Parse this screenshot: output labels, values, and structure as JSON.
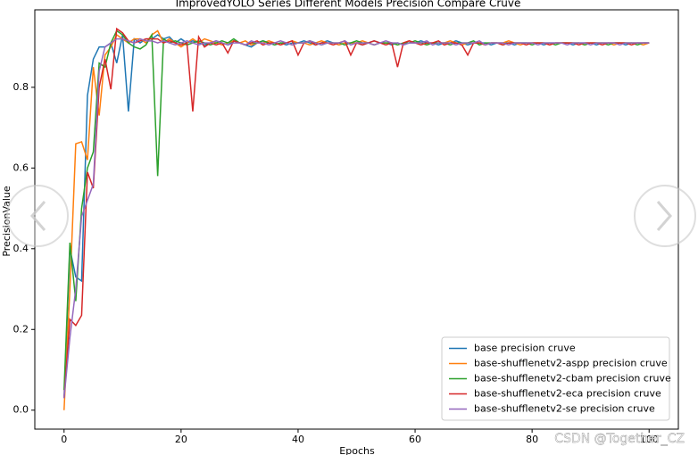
{
  "chart_data": {
    "type": "line",
    "title": "ImprovedYOLO Series Different Models Precision Compare Cruve",
    "xlabel": "Epochs",
    "ylabel": "PrecisionValue",
    "watermark": "CSDN @Together_CZ",
    "legend": "lower right",
    "xlim": [
      -5,
      105
    ],
    "ylim": [
      -0.047,
      0.992
    ],
    "xticks": [
      0,
      20,
      40,
      60,
      80,
      100
    ],
    "yticks": [
      {
        "value": 0,
        "label": "0.0"
      },
      0.2,
      0.4,
      0.6,
      0.8
    ],
    "x": [
      0,
      1,
      2,
      3,
      4,
      5,
      6,
      7,
      8,
      9,
      10,
      11,
      12,
      13,
      14,
      15,
      16,
      17,
      18,
      19,
      20,
      21,
      22,
      23,
      24,
      25,
      26,
      27,
      28,
      29,
      30,
      31,
      32,
      33,
      34,
      35,
      36,
      37,
      38,
      39,
      40,
      41,
      42,
      43,
      44,
      45,
      46,
      47,
      48,
      49,
      50,
      51,
      52,
      53,
      54,
      55,
      56,
      57,
      58,
      59,
      60,
      61,
      62,
      63,
      64,
      65,
      66,
      67,
      68,
      69,
      70,
      71,
      72,
      73,
      74,
      75,
      76,
      77,
      78,
      79,
      80,
      81,
      82,
      83,
      84,
      85,
      86,
      87,
      88,
      89,
      90,
      91,
      92,
      93,
      94,
      95,
      96,
      97,
      98,
      99,
      100
    ],
    "series": [
      {
        "name": "base precision cruve",
        "color": "#1f77b4",
        "values": [
          0.03,
          0.4,
          0.33,
          0.32,
          0.78,
          0.87,
          0.9,
          0.9,
          0.91,
          0.86,
          0.93,
          0.74,
          0.92,
          0.91,
          0.92,
          0.92,
          0.93,
          0.92,
          0.925,
          0.91,
          0.92,
          0.91,
          0.915,
          0.91,
          0.905,
          0.91,
          0.915,
          0.91,
          0.905,
          0.915,
          0.91,
          0.905,
          0.9,
          0.91,
          0.915,
          0.91,
          0.905,
          0.91,
          0.905,
          0.91,
          0.91,
          0.915,
          0.91,
          0.905,
          0.91,
          0.915,
          0.91,
          0.905,
          0.91,
          0.91,
          0.91,
          0.905,
          0.91,
          0.915,
          0.91,
          0.91,
          0.905,
          0.91,
          0.905,
          0.91,
          0.91,
          0.915,
          0.91,
          0.91,
          0.905,
          0.91,
          0.91,
          0.915,
          0.91,
          0.905,
          0.91,
          0.91,
          0.91,
          0.905,
          0.91,
          0.91,
          0.91,
          0.905,
          0.91,
          0.91,
          0.91,
          0.91,
          0.905,
          0.91,
          0.91,
          0.91,
          0.91,
          0.905,
          0.91,
          0.91,
          0.91,
          0.905,
          0.91,
          0.91,
          0.91,
          0.91,
          0.905,
          0.91,
          0.91,
          0.91,
          0.91
        ]
      },
      {
        "name": "base-shufflenetv2-aspp precision cruve",
        "color": "#ff7f0e",
        "values": [
          0.0,
          0.3,
          0.66,
          0.665,
          0.62,
          0.85,
          0.73,
          0.88,
          0.9,
          0.93,
          0.92,
          0.91,
          0.92,
          0.92,
          0.91,
          0.93,
          0.94,
          0.91,
          0.92,
          0.91,
          0.9,
          0.91,
          0.92,
          0.91,
          0.92,
          0.915,
          0.91,
          0.905,
          0.91,
          0.915,
          0.91,
          0.915,
          0.905,
          0.91,
          0.91,
          0.915,
          0.91,
          0.905,
          0.91,
          0.915,
          0.91,
          0.91,
          0.905,
          0.91,
          0.915,
          0.91,
          0.91,
          0.905,
          0.91,
          0.91,
          0.91,
          0.915,
          0.91,
          0.905,
          0.91,
          0.91,
          0.91,
          0.905,
          0.91,
          0.915,
          0.91,
          0.91,
          0.905,
          0.91,
          0.91,
          0.91,
          0.915,
          0.91,
          0.905,
          0.91,
          0.91,
          0.91,
          0.905,
          0.91,
          0.91,
          0.91,
          0.915,
          0.91,
          0.905,
          0.91,
          0.91,
          0.91,
          0.91,
          0.905,
          0.91,
          0.91,
          0.91,
          0.91,
          0.91,
          0.905,
          0.91,
          0.91,
          0.91,
          0.91,
          0.905,
          0.91,
          0.91,
          0.91,
          0.91,
          0.905,
          0.91
        ]
      },
      {
        "name": "base-shufflenetv2-cbam precision cruve",
        "color": "#2ca02c",
        "values": [
          0.05,
          0.415,
          0.27,
          0.5,
          0.6,
          0.64,
          0.86,
          0.85,
          0.91,
          0.94,
          0.93,
          0.91,
          0.9,
          0.895,
          0.905,
          0.93,
          0.58,
          0.92,
          0.91,
          0.915,
          0.91,
          0.905,
          0.91,
          0.915,
          0.91,
          0.905,
          0.91,
          0.915,
          0.91,
          0.92,
          0.91,
          0.905,
          0.91,
          0.91,
          0.915,
          0.91,
          0.905,
          0.91,
          0.91,
          0.905,
          0.91,
          0.91,
          0.915,
          0.91,
          0.905,
          0.91,
          0.91,
          0.91,
          0.905,
          0.91,
          0.915,
          0.91,
          0.91,
          0.905,
          0.91,
          0.91,
          0.91,
          0.905,
          0.91,
          0.91,
          0.915,
          0.91,
          0.905,
          0.91,
          0.91,
          0.91,
          0.905,
          0.91,
          0.91,
          0.91,
          0.915,
          0.905,
          0.91,
          0.91,
          0.91,
          0.905,
          0.91,
          0.91,
          0.91,
          0.91,
          0.905,
          0.91,
          0.91,
          0.91,
          0.905,
          0.91,
          0.91,
          0.91,
          0.91,
          0.905,
          0.91,
          0.91,
          0.91,
          0.905,
          0.91,
          0.91,
          0.91,
          0.91,
          0.905,
          0.91,
          0.91
        ]
      },
      {
        "name": "base-shufflenetv2-eca precision cruve",
        "color": "#d62728",
        "values": [
          0.03,
          0.225,
          0.21,
          0.235,
          0.59,
          0.55,
          0.8,
          0.87,
          0.795,
          0.945,
          0.935,
          0.915,
          0.91,
          0.915,
          0.92,
          0.92,
          0.92,
          0.91,
          0.915,
          0.91,
          0.905,
          0.91,
          0.74,
          0.925,
          0.9,
          0.91,
          0.905,
          0.91,
          0.885,
          0.915,
          0.91,
          0.905,
          0.91,
          0.915,
          0.905,
          0.91,
          0.91,
          0.905,
          0.91,
          0.915,
          0.88,
          0.91,
          0.915,
          0.905,
          0.91,
          0.91,
          0.905,
          0.91,
          0.915,
          0.88,
          0.91,
          0.905,
          0.91,
          0.915,
          0.91,
          0.905,
          0.91,
          0.85,
          0.91,
          0.915,
          0.91,
          0.905,
          0.91,
          0.91,
          0.915,
          0.905,
          0.91,
          0.91,
          0.905,
          0.88,
          0.91,
          0.91,
          0.905,
          0.91,
          0.91,
          0.905,
          0.91,
          0.91,
          0.91,
          0.905,
          0.91,
          0.91,
          0.91,
          0.905,
          0.91,
          0.91,
          0.91,
          0.91,
          0.905,
          0.91,
          0.91,
          0.91,
          0.905,
          0.91,
          0.91,
          0.91,
          0.91,
          0.905,
          0.91,
          0.91,
          0.91
        ]
      },
      {
        "name": "base-shufflenetv2-se precision cruve",
        "color": "#9467bd",
        "values": [
          0.03,
          0.18,
          0.3,
          0.48,
          0.52,
          0.56,
          0.84,
          0.9,
          0.91,
          0.92,
          0.92,
          0.915,
          0.91,
          0.92,
          0.915,
          0.915,
          0.91,
          0.915,
          0.91,
          0.905,
          0.91,
          0.915,
          0.91,
          0.905,
          0.91,
          0.91,
          0.915,
          0.91,
          0.905,
          0.91,
          0.91,
          0.905,
          0.915,
          0.91,
          0.91,
          0.905,
          0.91,
          0.915,
          0.91,
          0.905,
          0.91,
          0.91,
          0.915,
          0.91,
          0.905,
          0.91,
          0.91,
          0.91,
          0.915,
          0.905,
          0.91,
          0.91,
          0.91,
          0.905,
          0.91,
          0.915,
          0.91,
          0.91,
          0.905,
          0.91,
          0.91,
          0.91,
          0.915,
          0.905,
          0.91,
          0.91,
          0.91,
          0.905,
          0.91,
          0.91,
          0.91,
          0.915,
          0.905,
          0.91,
          0.91,
          0.91,
          0.905,
          0.91,
          0.91,
          0.91,
          0.91,
          0.905,
          0.91,
          0.91,
          0.91,
          0.91,
          0.905,
          0.91,
          0.91,
          0.91,
          0.905,
          0.91,
          0.91,
          0.91,
          0.91,
          0.905,
          0.91,
          0.91,
          0.91,
          0.91,
          0.91
        ]
      }
    ]
  }
}
